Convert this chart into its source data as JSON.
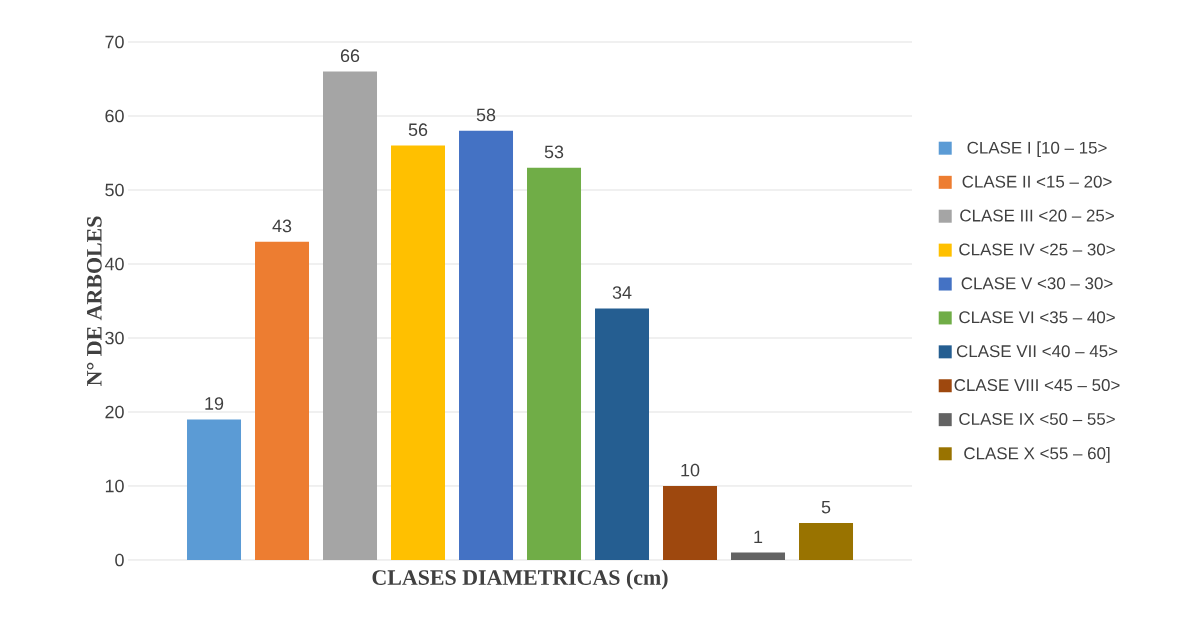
{
  "chart_data": {
    "type": "bar",
    "xlabel": "CLASES DIAMETRICAS (cm)",
    "ylabel": "N° DE ARBOLES",
    "categories": [
      null
    ],
    "series": [
      {
        "name": "CLASE I [10 – 15>",
        "color": "#5b9bd5",
        "values": [
          19
        ]
      },
      {
        "name": "CLASE II <15 – 20>",
        "color": "#ed7d31",
        "values": [
          43
        ]
      },
      {
        "name": "CLASE III <20 – 25>",
        "color": "#a5a5a5",
        "values": [
          66
        ]
      },
      {
        "name": "CLASE IV <25 – 30>",
        "color": "#ffc000",
        "values": [
          56
        ]
      },
      {
        "name": "CLASE V <30 – 30>",
        "color": "#4472c4",
        "values": [
          58
        ]
      },
      {
        "name": "CLASE VI <35 – 40>",
        "color": "#70ad47",
        "values": [
          53
        ]
      },
      {
        "name": "CLASE VII <40 – 45>",
        "color": "#255e91",
        "values": [
          34
        ]
      },
      {
        "name": "CLASE VIII <45 – 50>",
        "color": "#9e480e",
        "values": [
          10
        ]
      },
      {
        "name": "CLASE IX <50 – 55>",
        "color": "#636363",
        "values": [
          1
        ]
      },
      {
        "name": "CLASE X <55 – 60]",
        "color": "#997300",
        "values": [
          5
        ]
      }
    ],
    "ylim": [
      0,
      70
    ],
    "yticks": [
      0,
      10,
      20,
      30,
      40,
      50,
      60,
      70
    ],
    "grid": "y",
    "legend": "right",
    "data_labels": true
  }
}
